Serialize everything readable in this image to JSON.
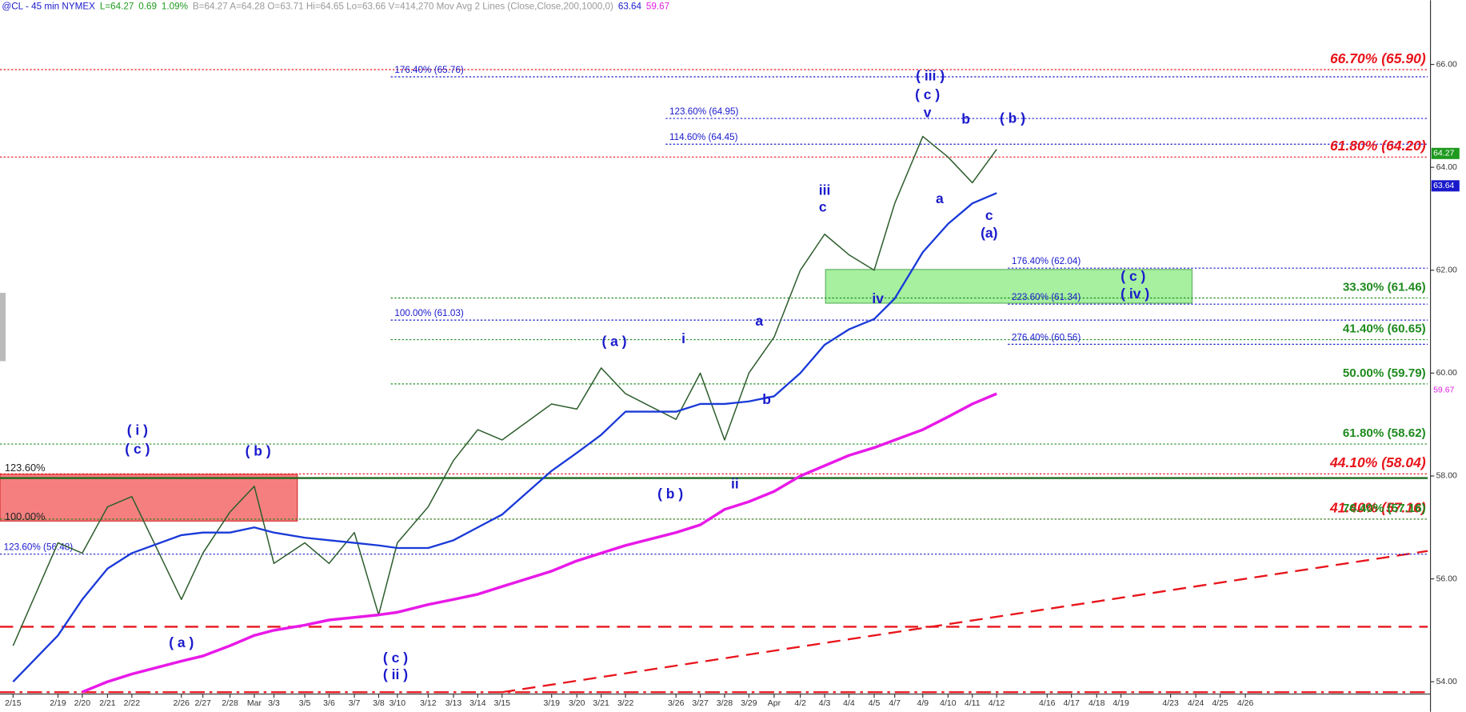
{
  "chart_data": {
    "type": "line",
    "header_parts": [
      {
        "text": "@CL - 45 min  NYMEX",
        "color": "#1a1acc"
      },
      {
        "text": "L=64.27",
        "color": "#1f9a1f"
      },
      {
        "text": "0.69",
        "color": "#1f9a1f"
      },
      {
        "text": "1.09%",
        "color": "#1f9a1f"
      },
      {
        "text": "B=64.27  A=64.28  O=63.71  Hi=64.65  Lo=63.66  V=414,270  Mov Avg 2 Lines (Close,Close,200,1000,0)",
        "color": "#999999"
      },
      {
        "text": "63.64",
        "color": "#1a1acc"
      },
      {
        "text": "59.67",
        "color": "#e020e0"
      }
    ],
    "categories": [
      "2/15",
      "2/19",
      "2/20",
      "2/21",
      "2/22",
      "2/26",
      "2/27",
      "2/28",
      "Mar",
      "3/3",
      "3/5",
      "3/6",
      "3/7",
      "3/8",
      "3/10",
      "3/12",
      "3/13",
      "3/14",
      "3/15",
      "3/19",
      "3/20",
      "3/21",
      "3/22",
      "3/26",
      "3/27",
      "3/28",
      "3/29",
      "Apr",
      "4/2",
      "4/3",
      "4/4",
      "4/5",
      "4/7",
      "4/9",
      "4/10",
      "4/11",
      "4/12",
      "4/16",
      "4/17",
      "4/18",
      "4/19",
      "4/23",
      "4/24",
      "4/25",
      "4/26"
    ],
    "series": [
      {
        "name": "Close",
        "color": "#2e5e2e",
        "values": [
          54.7,
          56.7,
          56.5,
          57.4,
          57.6,
          55.6,
          56.5,
          57.3,
          57.8,
          56.3,
          56.7,
          56.3,
          56.9,
          55.3,
          56.7,
          57.4,
          58.3,
          58.9,
          58.7,
          59.4,
          59.3,
          60.1,
          59.6,
          59.1,
          60.0,
          58.7,
          60.0,
          60.7,
          62.0,
          62.7,
          62.3,
          62.0,
          63.3,
          64.6,
          64.2,
          63.7,
          64.35,
          null,
          null,
          null,
          null,
          null,
          null,
          null,
          null
        ]
      },
      {
        "name": "Mov Avg 200",
        "color": "#1a3ad8",
        "values": [
          54.0,
          54.9,
          55.6,
          56.2,
          56.5,
          56.85,
          56.9,
          56.9,
          57.0,
          56.9,
          56.8,
          56.75,
          56.7,
          56.65,
          56.6,
          56.6,
          56.75,
          57.0,
          57.25,
          58.1,
          58.45,
          58.8,
          59.25,
          59.25,
          59.4,
          59.4,
          59.45,
          59.55,
          60.0,
          60.55,
          60.85,
          61.05,
          61.45,
          62.35,
          62.9,
          63.3,
          63.5,
          null,
          null,
          null,
          null,
          null,
          null,
          null,
          null
        ]
      },
      {
        "name": "Mov Avg 1000",
        "color": "#e81ae8",
        "values": [
          null,
          null,
          53.8,
          54.0,
          54.15,
          54.4,
          54.5,
          54.7,
          54.9,
          55.0,
          55.1,
          55.2,
          55.25,
          55.3,
          55.35,
          55.5,
          55.6,
          55.7,
          55.85,
          56.15,
          56.35,
          56.5,
          56.65,
          56.9,
          57.05,
          57.35,
          57.5,
          57.7,
          58.0,
          58.2,
          58.4,
          58.55,
          58.7,
          58.9,
          59.15,
          59.4,
          59.6,
          null,
          null,
          null,
          null,
          null,
          null,
          null,
          null
        ]
      }
    ],
    "ylim": [
      53.76,
      67.25
    ],
    "yticks": [
      {
        "value": 54,
        "label": "54.00"
      },
      {
        "value": 56,
        "label": "56.00"
      },
      {
        "value": 58,
        "label": "58.00"
      },
      {
        "value": 60,
        "label": "60.00"
      },
      {
        "value": 62,
        "label": "62.00"
      },
      {
        "value": 64,
        "label": "64.00"
      },
      {
        "value": 66,
        "label": "66.00"
      }
    ],
    "price_tags": [
      {
        "value": 64.27,
        "color": "#1f9a1f"
      },
      {
        "value": 63.64,
        "color": "#1a1acc"
      },
      {
        "value": 59.67,
        "color": "#e020e0"
      }
    ],
    "levels": [
      {
        "value": 65.9,
        "label": "66.70% (65.90)",
        "color": "#e8141b"
      },
      {
        "value": 65.76,
        "label": "176.40% (65.76)",
        "color": "#1a1acc"
      },
      {
        "value": 64.95,
        "label": "123.60% (64.95)",
        "color": "#1a1acc"
      },
      {
        "value": 64.45,
        "label": "114.60% (64.45)",
        "color": "#1a1acc"
      },
      {
        "value": 64.2,
        "label": "61.80% (64.20)",
        "color": "#e8141b"
      },
      {
        "value": 62.04,
        "label": "176.40% (62.04)",
        "color": "#1a1acc"
      },
      {
        "value": 61.46,
        "label": "33.30% (61.46)",
        "color": "#1f8a1f"
      },
      {
        "value": 61.34,
        "label": "223.60% (61.34)",
        "color": "#1a1acc"
      },
      {
        "value": 61.03,
        "label": "100.00% (61.03)",
        "color": "#1a1acc"
      },
      {
        "value": 60.65,
        "label": "41.40% (60.65)",
        "color": "#1f8a1f"
      },
      {
        "value": 60.56,
        "label": "276.40% (60.56)",
        "color": "#1a1acc"
      },
      {
        "value": 59.79,
        "label": "50.00% (59.79)",
        "color": "#1f8a1f"
      },
      {
        "value": 58.62,
        "label": "61.80% (58.62)",
        "color": "#1f8a1f"
      },
      {
        "value": 58.04,
        "label": "44.10% (58.04)",
        "color": "#e8141b"
      },
      {
        "value": 57.16,
        "label": "41.40% (57.16)",
        "color": "#e8141b"
      },
      {
        "value": 57.16,
        "label": "76.40% (57.16)",
        "color": "#1f8a1f"
      },
      {
        "value": 56.48,
        "label": "123.60% (56.48)",
        "color": "#1a1acc"
      }
    ],
    "annotations": [
      "( i )",
      "( c )",
      "( b )",
      "( a )",
      "( c )",
      "( ii )",
      "( a )",
      "( b )",
      "i",
      "ii",
      "a",
      "b",
      "iii",
      "c",
      "iv",
      "( iii )",
      "( c )",
      "v",
      "b",
      "a",
      "( b )",
      "c",
      "(a)",
      "( c )",
      "( iv )",
      "123.60%",
      "100.00%"
    ]
  }
}
